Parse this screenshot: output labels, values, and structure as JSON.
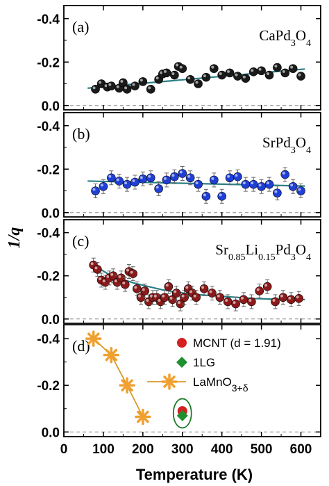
{
  "chart_data": {
    "type": "scatter",
    "xlabel": "Temperature (K)",
    "ylabel": "1/q",
    "xlim": [
      0,
      650
    ],
    "x_ticks": [
      "0",
      "100",
      "200",
      "300",
      "400",
      "500",
      "600"
    ],
    "y_ticks": [
      "-0.4",
      "-0.2",
      "0.0"
    ],
    "panels": [
      {
        "label": "(a)",
        "material": {
          "base": "CaPd",
          "sub1": "3",
          "mid": "O",
          "sub2": "4"
        },
        "marker_color": "#1a1a1a",
        "fit_color": "#2a7f86",
        "ylim": [
          0.02,
          -0.46
        ],
        "x": [
          80,
          95,
          110,
          120,
          140,
          150,
          160,
          180,
          200,
          220,
          240,
          250,
          260,
          280,
          290,
          300,
          320,
          340,
          360,
          380,
          400,
          420,
          440,
          460,
          480,
          500,
          520,
          540,
          560,
          580,
          600
        ],
        "y": [
          -0.075,
          -0.1,
          -0.085,
          -0.09,
          -0.08,
          -0.105,
          -0.075,
          -0.09,
          -0.11,
          -0.075,
          -0.12,
          -0.145,
          -0.15,
          -0.14,
          -0.18,
          -0.17,
          -0.12,
          -0.1,
          -0.13,
          -0.17,
          -0.14,
          -0.15,
          -0.135,
          -0.125,
          -0.155,
          -0.16,
          -0.14,
          -0.175,
          -0.15,
          -0.17,
          -0.135
        ],
        "fit": [
          [
            60,
            -0.08
          ],
          [
            610,
            -0.168
          ]
        ]
      },
      {
        "label": "(b)",
        "material": {
          "base": "SrPd",
          "sub1": "3",
          "mid": "O",
          "sub2": "4"
        },
        "marker_color": "#1f3fd6",
        "fit_color": "#2a7f86",
        "ylim": [
          0.02,
          -0.46
        ],
        "x": [
          80,
          100,
          120,
          140,
          160,
          180,
          200,
          220,
          240,
          260,
          280,
          300,
          320,
          340,
          360,
          380,
          400,
          420,
          440,
          460,
          480,
          500,
          520,
          540,
          560,
          580,
          600
        ],
        "y": [
          -0.1,
          -0.12,
          -0.16,
          -0.145,
          -0.13,
          -0.14,
          -0.155,
          -0.16,
          -0.11,
          -0.15,
          -0.165,
          -0.18,
          -0.16,
          -0.13,
          -0.075,
          -0.15,
          -0.075,
          -0.16,
          -0.165,
          -0.13,
          -0.13,
          -0.12,
          -0.13,
          -0.09,
          -0.175,
          -0.12,
          -0.1
        ],
        "fit": [
          [
            60,
            -0.145
          ],
          [
            610,
            -0.122
          ]
        ]
      },
      {
        "label": "(c)",
        "material": {
          "base": "Sr",
          "sub1": "0.85",
          "mid": "Li",
          "sub2": "0.15",
          "tail": "Pd",
          "sub3": "3",
          "tail2": "O",
          "sub4": "4"
        },
        "marker_color": "#8b1a1a",
        "fit_color": "#2a7f86",
        "ylim": [
          0.02,
          -0.46
        ],
        "x": [
          75,
          85,
          95,
          105,
          115,
          125,
          135,
          145,
          155,
          165,
          175,
          185,
          195,
          205,
          215,
          225,
          235,
          245,
          255,
          265,
          275,
          285,
          295,
          305,
          315,
          325,
          335,
          355,
          375,
          395,
          415,
          435,
          455,
          475,
          495,
          515,
          535,
          555,
          575,
          595
        ],
        "y": [
          -0.25,
          -0.23,
          -0.18,
          -0.17,
          -0.19,
          -0.2,
          -0.17,
          -0.19,
          -0.16,
          -0.22,
          -0.21,
          -0.14,
          -0.1,
          -0.13,
          -0.08,
          -0.1,
          -0.1,
          -0.08,
          -0.1,
          -0.15,
          -0.09,
          -0.12,
          -0.07,
          -0.1,
          -0.14,
          -0.12,
          -0.1,
          -0.14,
          -0.12,
          -0.1,
          -0.08,
          -0.07,
          -0.09,
          -0.08,
          -0.13,
          -0.15,
          -0.08,
          -0.1,
          -0.09,
          -0.095
        ],
        "fit": [
          [
            70,
            -0.255
          ],
          [
            120,
            -0.2
          ],
          [
            180,
            -0.165
          ],
          [
            250,
            -0.135
          ],
          [
            320,
            -0.115
          ],
          [
            400,
            -0.105
          ],
          [
            480,
            -0.095
          ],
          [
            560,
            -0.09
          ],
          [
            610,
            -0.09
          ]
        ]
      },
      {
        "label": "(d)",
        "ylim": [
          0.02,
          -0.46
        ],
        "series": [
          {
            "name": "MCNT (d = 1.91)",
            "marker": "circle",
            "color": "#d42020",
            "x": [
              300
            ],
            "y": [
              -0.09
            ]
          },
          {
            "name": "1LG",
            "marker": "diamond",
            "color": "#1f8f2f",
            "x": [
              300
            ],
            "y": [
              -0.07
            ]
          },
          {
            "name": "LaMnO",
            "name_sub": "3+δ",
            "marker": "asterisk",
            "color": "#f0a030",
            "line_color": "#d79a2a",
            "x": [
              75,
              120,
              160,
              200
            ],
            "y": [
              -0.4,
              -0.33,
              -0.2,
              -0.065
            ]
          }
        ],
        "annotation": "ellipse around points at 300 K"
      }
    ]
  }
}
